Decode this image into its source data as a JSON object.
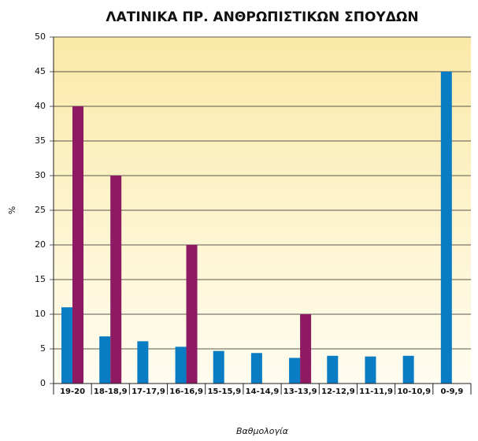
{
  "chart_data": {
    "type": "bar",
    "title": "ΛΑΤΙΝΙΚΑ ΠΡ. ΑΝΘΡΩΠΙΣΤΙΚΩΝ ΣΠΟΥΔΩΝ",
    "x_label": "Βαθμολογία",
    "y_label": "%",
    "categories": [
      "19-20",
      "18-18,9",
      "17-17,9",
      "16-16,9",
      "15-15,9",
      "14-14,9",
      "13-13,9",
      "12-12,9",
      "11-11,9",
      "10-10,9",
      "0-9,9"
    ],
    "series": [
      {
        "color": "#0a7cc4",
        "values": [
          11,
          6.8,
          6.1,
          5.3,
          4.7,
          4.4,
          3.7,
          4.0,
          3.9,
          4.0,
          45
        ]
      },
      {
        "color": "#8e1a64",
        "values": [
          40,
          30,
          0,
          20,
          0,
          0,
          10,
          0,
          0,
          0,
          0
        ]
      }
    ],
    "ylim": [
      0,
      50
    ],
    "yticks": [
      0,
      5,
      10,
      15,
      20,
      25,
      30,
      35,
      40,
      45,
      50
    ],
    "grid": true
  }
}
